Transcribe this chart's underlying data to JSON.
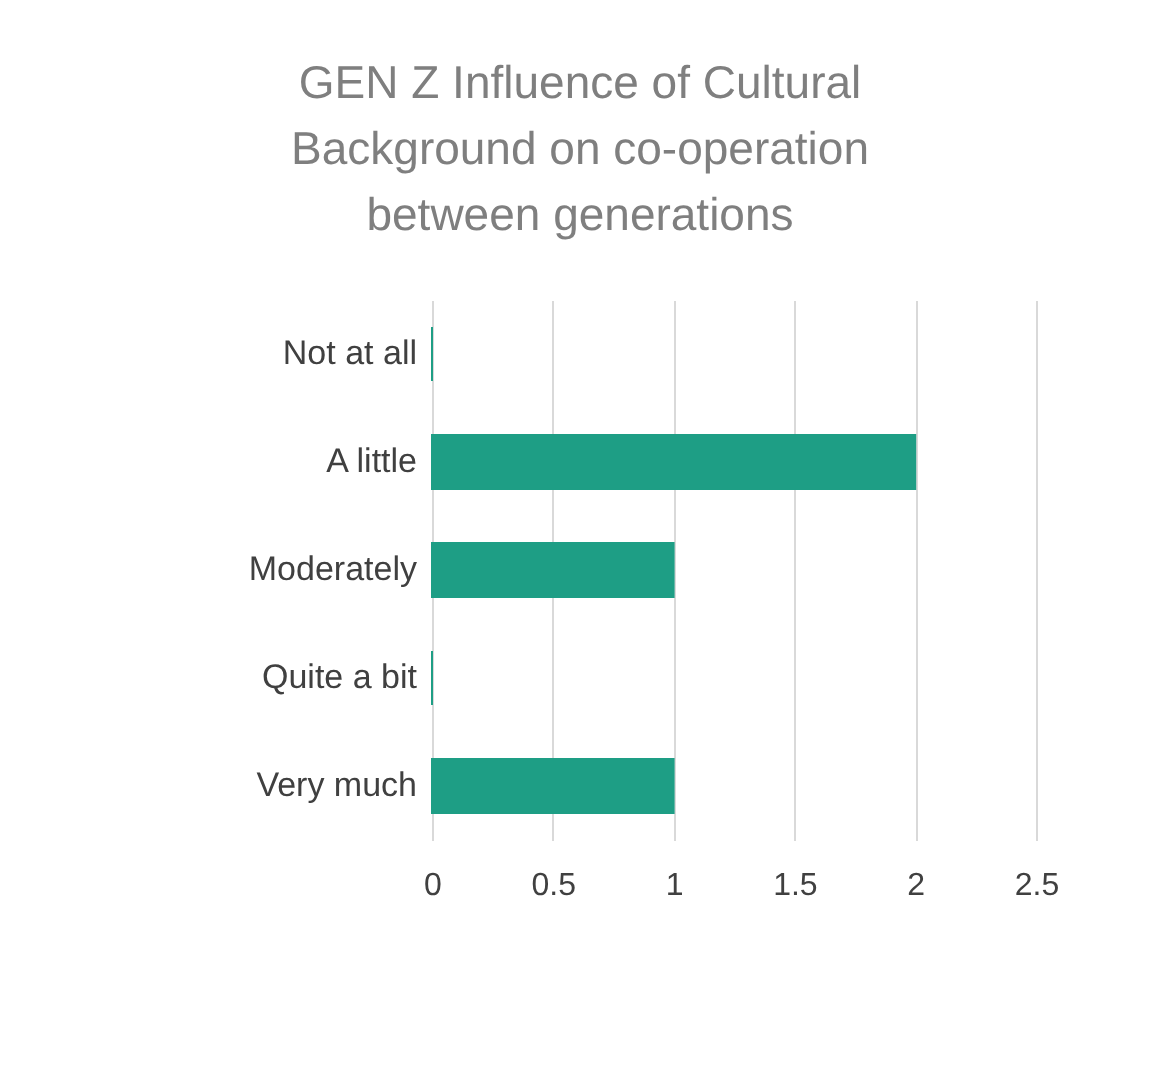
{
  "chart_data": {
    "type": "bar",
    "orientation": "horizontal",
    "title": "GEN Z Influence of Cultural Background on co-operation between generations",
    "categories": [
      "Not at all",
      "A little",
      "Moderately",
      "Quite a bit",
      "Very much"
    ],
    "values": [
      0,
      2,
      1,
      0,
      1
    ],
    "color": "#1e9e85",
    "xlim": [
      0,
      2.5
    ],
    "xticks": [
      0,
      0.5,
      1,
      1.5,
      2,
      2.5
    ],
    "grid": "x"
  }
}
